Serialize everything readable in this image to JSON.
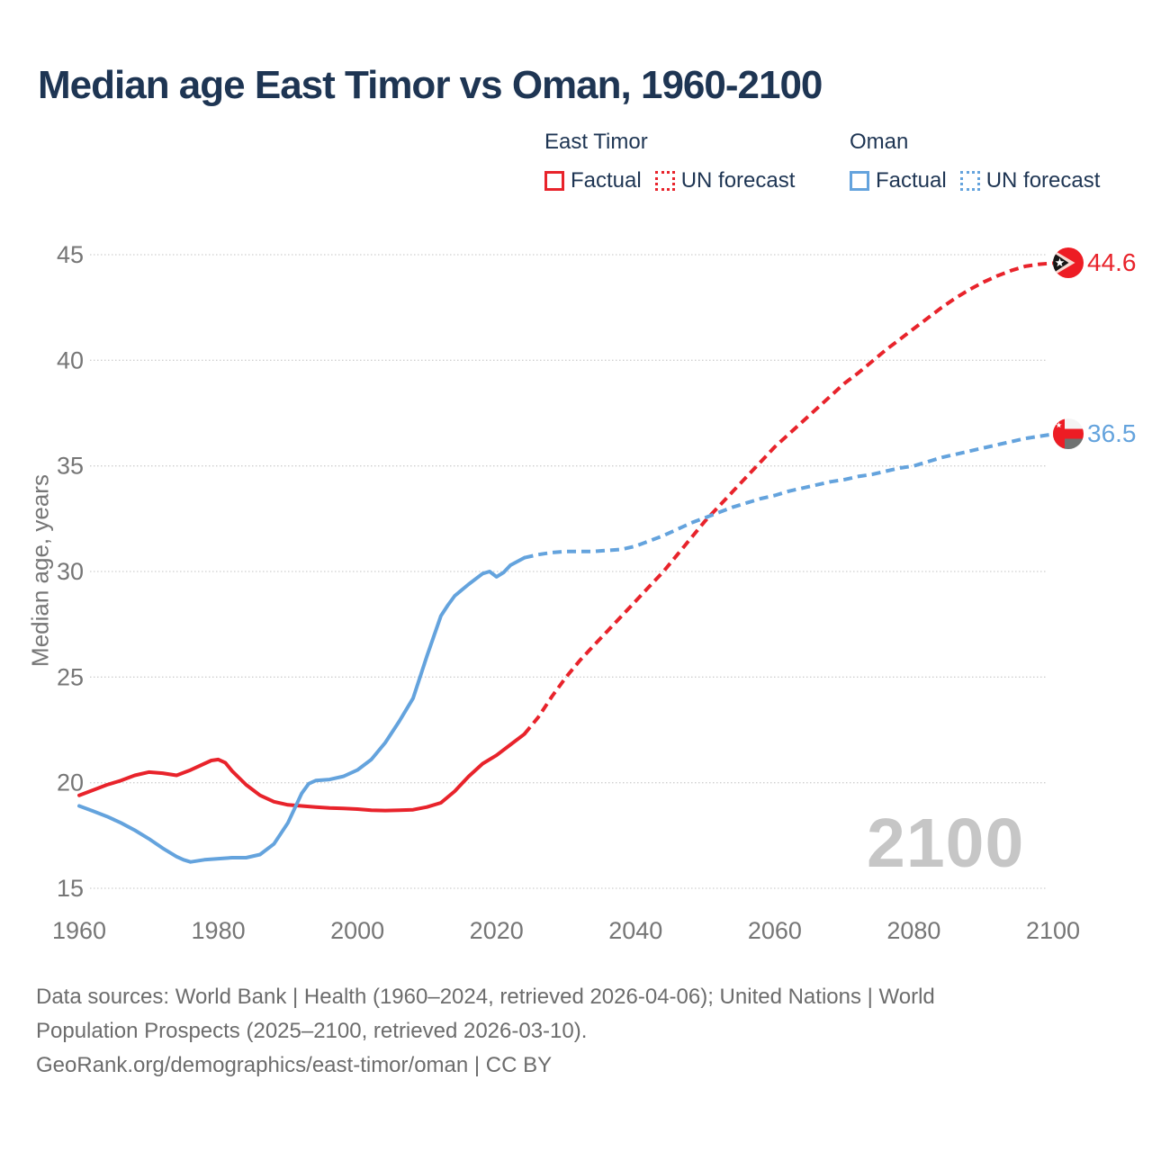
{
  "header": {
    "title": "Median age East Timor vs Oman, 1960-2100"
  },
  "legend": {
    "groups": [
      {
        "name": "East Timor",
        "items": [
          {
            "label": "Factual",
            "style": "solid"
          },
          {
            "label": "UN forecast",
            "style": "dotted"
          }
        ]
      },
      {
        "name": "Oman",
        "items": [
          {
            "label": "Factual",
            "style": "solid"
          },
          {
            "label": "UN forecast",
            "style": "dotted"
          }
        ]
      }
    ]
  },
  "watermark": "2100",
  "end_labels": {
    "east_timor": "44.6",
    "oman": "36.5"
  },
  "footer": {
    "lines": [
      "Data sources: World Bank | Health (1960–2024, retrieved 2026-04-06); United Nations | World",
      "Population Prospects (2025–2100, retrieved 2026-03-10).",
      "GeoRank.org/demographics/east-timor/oman | CC BY"
    ]
  },
  "colors": {
    "east_timor": "#e8232b",
    "oman": "#64a3dd",
    "title_text": "#1e3553",
    "axis_text": "#767676",
    "grid": "#cfcfcf",
    "footer_text": "#6c6c6c",
    "watermark": "#c6c6c6"
  },
  "chart_data": {
    "type": "line",
    "title": "Median age East Timor vs Oman, 1960-2100",
    "xlabel": "",
    "ylabel": "Median age, years",
    "xlim": [
      1960,
      2100
    ],
    "ylim": [
      15,
      45
    ],
    "x_ticks": [
      1960,
      1980,
      2000,
      2020,
      2040,
      2060,
      2080,
      2100
    ],
    "y_ticks": [
      15,
      20,
      25,
      30,
      35,
      40,
      45
    ],
    "grid": true,
    "legend_position": "top",
    "series": [
      {
        "name": "East Timor factual",
        "color": "#e8232b",
        "style": "solid",
        "points": [
          [
            1960,
            19.4
          ],
          [
            1962,
            19.65
          ],
          [
            1964,
            19.9
          ],
          [
            1966,
            20.1
          ],
          [
            1968,
            20.35
          ],
          [
            1970,
            20.5
          ],
          [
            1972,
            20.45
          ],
          [
            1974,
            20.35
          ],
          [
            1976,
            20.6
          ],
          [
            1978,
            20.9
          ],
          [
            1979,
            21.05
          ],
          [
            1980,
            21.1
          ],
          [
            1981,
            20.95
          ],
          [
            1982,
            20.55
          ],
          [
            1984,
            19.9
          ],
          [
            1986,
            19.4
          ],
          [
            1988,
            19.1
          ],
          [
            1990,
            18.95
          ],
          [
            1992,
            18.9
          ],
          [
            1994,
            18.85
          ],
          [
            1996,
            18.8
          ],
          [
            1998,
            18.78
          ],
          [
            2000,
            18.75
          ],
          [
            2002,
            18.7
          ],
          [
            2004,
            18.68
          ],
          [
            2006,
            18.7
          ],
          [
            2008,
            18.72
          ],
          [
            2010,
            18.85
          ],
          [
            2012,
            19.05
          ],
          [
            2014,
            19.6
          ],
          [
            2016,
            20.3
          ],
          [
            2018,
            20.9
          ],
          [
            2020,
            21.3
          ],
          [
            2022,
            21.8
          ],
          [
            2024,
            22.3
          ]
        ]
      },
      {
        "name": "East Timor UN forecast",
        "color": "#e8232b",
        "style": "dashed",
        "points": [
          [
            2024,
            22.3
          ],
          [
            2026,
            23.1
          ],
          [
            2028,
            24.1
          ],
          [
            2030,
            25.0
          ],
          [
            2032,
            25.8
          ],
          [
            2034,
            26.5
          ],
          [
            2036,
            27.2
          ],
          [
            2038,
            27.9
          ],
          [
            2040,
            28.6
          ],
          [
            2042,
            29.3
          ],
          [
            2044,
            30.0
          ],
          [
            2046,
            30.8
          ],
          [
            2048,
            31.6
          ],
          [
            2050,
            32.4
          ],
          [
            2052,
            33.1
          ],
          [
            2054,
            33.8
          ],
          [
            2056,
            34.5
          ],
          [
            2058,
            35.2
          ],
          [
            2060,
            35.9
          ],
          [
            2062,
            36.5
          ],
          [
            2064,
            37.1
          ],
          [
            2066,
            37.7
          ],
          [
            2068,
            38.3
          ],
          [
            2070,
            38.9
          ],
          [
            2072,
            39.4
          ],
          [
            2074,
            39.95
          ],
          [
            2076,
            40.5
          ],
          [
            2078,
            41.0
          ],
          [
            2080,
            41.5
          ],
          [
            2082,
            42.0
          ],
          [
            2084,
            42.5
          ],
          [
            2086,
            42.95
          ],
          [
            2088,
            43.35
          ],
          [
            2090,
            43.7
          ],
          [
            2092,
            44.0
          ],
          [
            2094,
            44.25
          ],
          [
            2096,
            44.45
          ],
          [
            2098,
            44.55
          ],
          [
            2100,
            44.6
          ]
        ]
      },
      {
        "name": "Oman factual",
        "color": "#64a3dd",
        "style": "solid",
        "points": [
          [
            1960,
            18.9
          ],
          [
            1962,
            18.65
          ],
          [
            1964,
            18.4
          ],
          [
            1966,
            18.1
          ],
          [
            1968,
            17.75
          ],
          [
            1970,
            17.35
          ],
          [
            1972,
            16.9
          ],
          [
            1974,
            16.5
          ],
          [
            1975,
            16.35
          ],
          [
            1976,
            16.25
          ],
          [
            1978,
            16.35
          ],
          [
            1980,
            16.4
          ],
          [
            1982,
            16.45
          ],
          [
            1984,
            16.45
          ],
          [
            1986,
            16.6
          ],
          [
            1988,
            17.1
          ],
          [
            1990,
            18.1
          ],
          [
            1992,
            19.5
          ],
          [
            1993,
            19.95
          ],
          [
            1994,
            20.1
          ],
          [
            1996,
            20.15
          ],
          [
            1998,
            20.3
          ],
          [
            2000,
            20.6
          ],
          [
            2002,
            21.1
          ],
          [
            2004,
            21.9
          ],
          [
            2006,
            22.9
          ],
          [
            2008,
            24.0
          ],
          [
            2010,
            26.0
          ],
          [
            2012,
            27.9
          ],
          [
            2013,
            28.4
          ],
          [
            2014,
            28.85
          ],
          [
            2016,
            29.4
          ],
          [
            2018,
            29.9
          ],
          [
            2019,
            30.0
          ],
          [
            2020,
            29.75
          ],
          [
            2021,
            29.95
          ],
          [
            2022,
            30.3
          ],
          [
            2024,
            30.65
          ]
        ]
      },
      {
        "name": "Oman UN forecast",
        "color": "#64a3dd",
        "style": "dashed",
        "points": [
          [
            2024,
            30.65
          ],
          [
            2026,
            30.8
          ],
          [
            2028,
            30.9
          ],
          [
            2030,
            30.95
          ],
          [
            2032,
            30.95
          ],
          [
            2034,
            30.95
          ],
          [
            2036,
            31.0
          ],
          [
            2038,
            31.05
          ],
          [
            2040,
            31.2
          ],
          [
            2042,
            31.45
          ],
          [
            2044,
            31.7
          ],
          [
            2046,
            32.0
          ],
          [
            2048,
            32.3
          ],
          [
            2050,
            32.55
          ],
          [
            2052,
            32.8
          ],
          [
            2054,
            33.05
          ],
          [
            2056,
            33.25
          ],
          [
            2058,
            33.45
          ],
          [
            2060,
            33.6
          ],
          [
            2062,
            33.8
          ],
          [
            2064,
            33.95
          ],
          [
            2066,
            34.1
          ],
          [
            2068,
            34.25
          ],
          [
            2070,
            34.35
          ],
          [
            2072,
            34.5
          ],
          [
            2074,
            34.6
          ],
          [
            2076,
            34.75
          ],
          [
            2078,
            34.9
          ],
          [
            2080,
            35.0
          ],
          [
            2082,
            35.2
          ],
          [
            2084,
            35.4
          ],
          [
            2086,
            35.55
          ],
          [
            2088,
            35.7
          ],
          [
            2090,
            35.85
          ],
          [
            2092,
            36.0
          ],
          [
            2094,
            36.15
          ],
          [
            2096,
            36.3
          ],
          [
            2098,
            36.4
          ],
          [
            2100,
            36.5
          ]
        ]
      }
    ]
  }
}
